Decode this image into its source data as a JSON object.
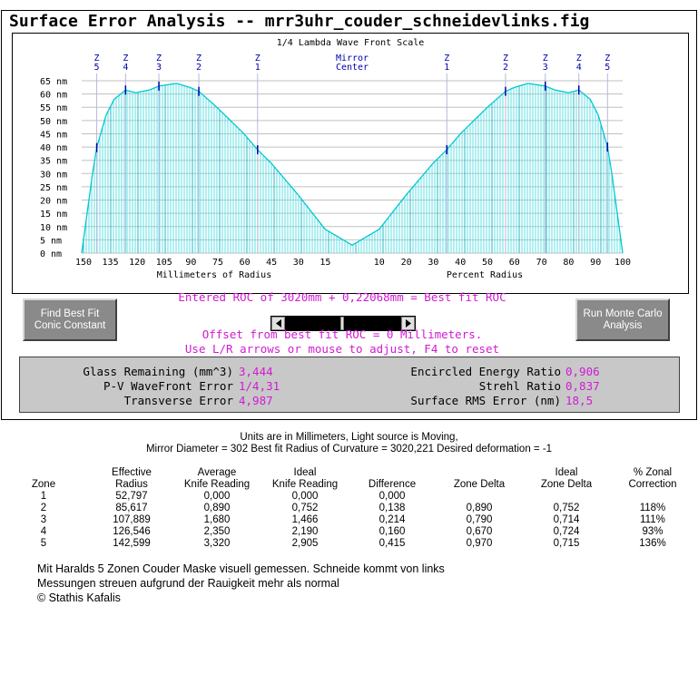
{
  "window": {
    "title": "Surface Error Analysis -- mrr3uhr_couder_schneidevlinks.fig"
  },
  "chart_data": {
    "type": "area",
    "title": "1/4 Lambda Wave Front Scale",
    "y_unit": "nm",
    "ylim": [
      0,
      65
    ],
    "y_ticks": [
      "65 nm",
      "60 nm",
      "55 nm",
      "50 nm",
      "45 nm",
      "40 nm",
      "35 nm",
      "30 nm",
      "25 nm",
      "20 nm",
      "15 nm",
      "10 nm",
      "5 nm",
      "0 nm"
    ],
    "left_axis": {
      "xlabel": "Millimeters of Radius",
      "ticks": [
        "150",
        "135",
        "120",
        "105",
        "90",
        "75",
        "60",
        "45",
        "30",
        "15"
      ]
    },
    "right_axis": {
      "xlabel": "Percent Radius",
      "ticks": [
        "10",
        "20",
        "30",
        "40",
        "50",
        "60",
        "70",
        "80",
        "90",
        "100"
      ]
    },
    "center_label": [
      "Mirror",
      "Center"
    ],
    "zones_left": [
      {
        "top": "Z",
        "bottom": "5",
        "mm": 142.6
      },
      {
        "top": "Z",
        "bottom": "4",
        "mm": 126.5
      },
      {
        "top": "Z",
        "bottom": "3",
        "mm": 107.9
      },
      {
        "top": "Z",
        "bottom": "2",
        "mm": 85.6
      },
      {
        "top": "Z",
        "bottom": "1",
        "mm": 52.8
      }
    ],
    "zones_right": [
      {
        "top": "Z",
        "bottom": "1",
        "pct": 35.0
      },
      {
        "top": "Z",
        "bottom": "2",
        "pct": 56.7
      },
      {
        "top": "Z",
        "bottom": "3",
        "pct": 71.4
      },
      {
        "top": "Z",
        "bottom": "4",
        "pct": 83.8
      },
      {
        "top": "Z",
        "bottom": "5",
        "pct": 94.4
      }
    ],
    "profile_percent_radius": [
      0,
      10,
      20,
      30,
      35,
      40,
      50,
      56.7,
      60,
      65,
      71.4,
      75,
      80,
      83.8,
      88,
      91,
      94.4,
      96,
      98,
      100
    ],
    "profile_nm": [
      3,
      9,
      22,
      34,
      39,
      45,
      55,
      61,
      62.5,
      64,
      63,
      61.5,
      60.5,
      61.5,
      58,
      52,
      40,
      30,
      15,
      0
    ],
    "colors": {
      "fill_lines": "#5fe0e6",
      "outline": "#00c8d2",
      "grid": "#c0c0c0",
      "zone_text": "#0000aa"
    }
  },
  "controls": {
    "best_fit_button": "Find Best Fit Conic Constant",
    "monte_carlo_button": "Run Monte Carlo Analysis",
    "roc_line": "Entered ROC of 3020mm + 0,22068mm = Best fit ROC",
    "offset_line": "Offset from best fit ROC = 0 Millimeters.",
    "hint_line": "Use L/R arrows or mouse to adjust, F4 to reset",
    "slider_position": 0.5
  },
  "stats": {
    "glass_label": "Glass Remaining (mm^3)",
    "glass_value": "3,444",
    "pv_label": "P-V WaveFront Error",
    "pv_value": "1/4,31",
    "transverse_label": "Transverse Error",
    "transverse_value": "4,987",
    "energy_label": "Encircled Energy Ratio",
    "energy_value": "0,906",
    "strehl_label": "Strehl Ratio",
    "strehl_value": "0,837",
    "rms_label": "Surface RMS Error (nm)",
    "rms_value": "18,5"
  },
  "info": {
    "line1": "Units are in Millimeters, Light source is Moving,",
    "line2": "Mirror Diameter = 302     Best fit Radius of Curvature = 3020,221     Desired deformation = -1"
  },
  "table": {
    "headers": [
      [
        "",
        "Zone"
      ],
      [
        "Effective",
        "Radius"
      ],
      [
        "Average",
        "Knife Reading"
      ],
      [
        "Ideal",
        "Knife Reading"
      ],
      [
        "",
        "Difference"
      ],
      [
        "",
        "Zone Delta"
      ],
      [
        "Ideal",
        "Zone Delta"
      ],
      [
        "% Zonal",
        "Correction"
      ]
    ],
    "rows": [
      [
        "1",
        "52,797",
        "0,000",
        "0,000",
        "0,000",
        "",
        "",
        ""
      ],
      [
        "2",
        "85,617",
        "0,890",
        "0,752",
        "0,138",
        "0,890",
        "0,752",
        "118%"
      ],
      [
        "3",
        "107,889",
        "1,680",
        "1,466",
        "0,214",
        "0,790",
        "0,714",
        "111%"
      ],
      [
        "4",
        "126,546",
        "2,350",
        "2,190",
        "0,160",
        "0,670",
        "0,724",
        "93%"
      ],
      [
        "5",
        "142,599",
        "3,320",
        "2,905",
        "0,415",
        "0,970",
        "0,715",
        "136%"
      ]
    ]
  },
  "notes": [
    "Mit Haralds 5 Zonen Couder Maske visuell gemessen. Schneide kommt von links",
    "Messungen streuen aufgrund der Rauigkeit mehr als normal",
    "© Stathis Kafalis"
  ]
}
